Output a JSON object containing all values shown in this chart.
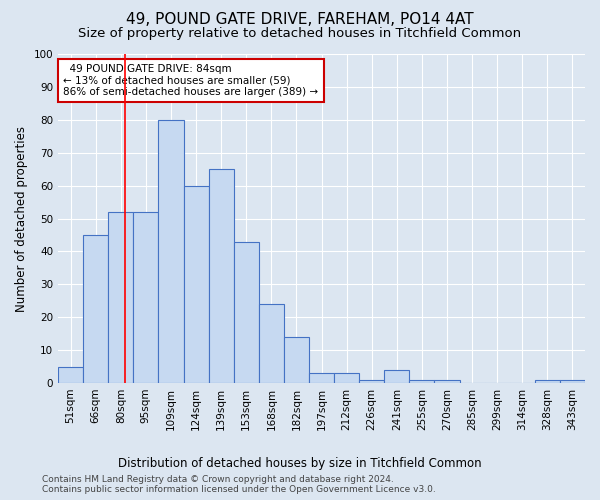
{
  "title": "49, POUND GATE DRIVE, FAREHAM, PO14 4AT",
  "subtitle": "Size of property relative to detached houses in Titchfield Common",
  "xlabel": "Distribution of detached houses by size in Titchfield Common",
  "ylabel": "Number of detached properties",
  "footer1": "Contains HM Land Registry data © Crown copyright and database right 2024.",
  "footer2": "Contains public sector information licensed under the Open Government Licence v3.0.",
  "bar_labels": [
    "51sqm",
    "66sqm",
    "80sqm",
    "95sqm",
    "109sqm",
    "124sqm",
    "139sqm",
    "153sqm",
    "168sqm",
    "182sqm",
    "197sqm",
    "212sqm",
    "226sqm",
    "241sqm",
    "255sqm",
    "270sqm",
    "285sqm",
    "299sqm",
    "314sqm",
    "328sqm",
    "343sqm"
  ],
  "bar_values": [
    5,
    45,
    52,
    52,
    80,
    60,
    65,
    43,
    24,
    14,
    3,
    3,
    1,
    4,
    1,
    1,
    0,
    0,
    0,
    1,
    1
  ],
  "bar_color": "#c6d9f1",
  "bar_edge_color": "#4472c4",
  "bg_color": "#dce6f1",
  "grid_color": "#ffffff",
  "red_line_x": 2.65,
  "annotation_text": "  49 POUND GATE DRIVE: 84sqm\n← 13% of detached houses are smaller (59)\n86% of semi-detached houses are larger (389) →",
  "annotation_box_color": "#ffffff",
  "annotation_box_edge": "#cc0000",
  "ylim": [
    0,
    100
  ],
  "title_fontsize": 11,
  "subtitle_fontsize": 9.5,
  "axis_label_fontsize": 8.5,
  "tick_fontsize": 7.5,
  "footer_fontsize": 6.5
}
